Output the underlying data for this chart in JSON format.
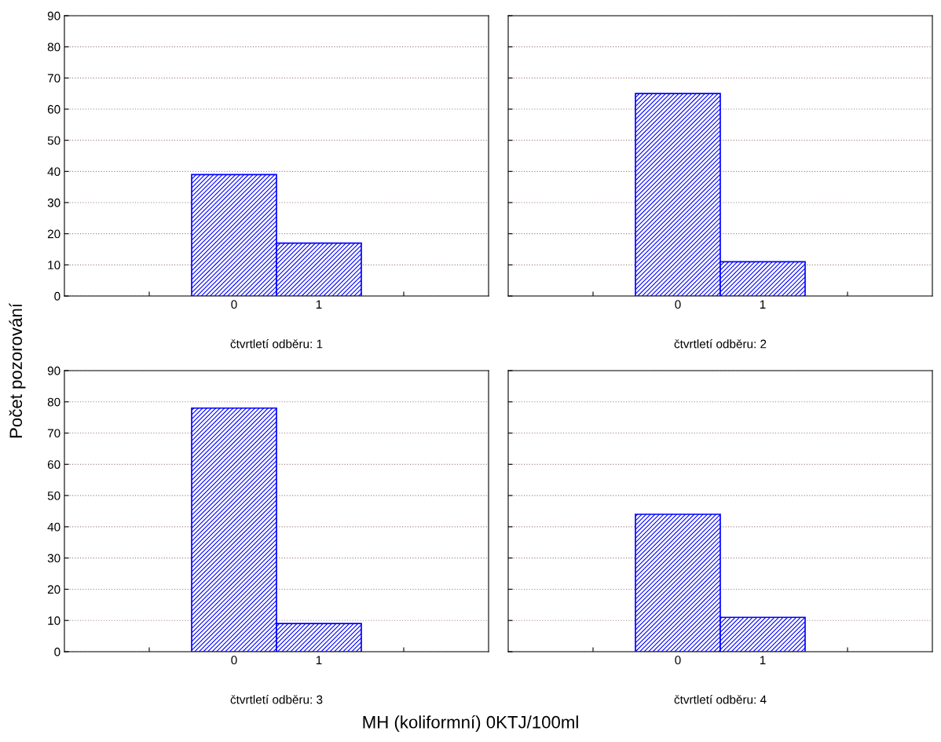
{
  "chart_data": [
    {
      "type": "bar",
      "xlabel": "čtvrtletí odběru: 1",
      "ylabel": "Počet pozorování",
      "categories": [
        null,
        "0",
        "1",
        null
      ],
      "values": [
        null,
        39,
        17,
        null
      ],
      "color": "#0000ff",
      "ylim": [
        0,
        90
      ],
      "yticks": [
        0,
        10,
        20,
        30,
        40,
        50,
        60,
        70,
        80,
        90
      ],
      "grid": "y"
    },
    {
      "type": "bar",
      "xlabel": "čtvrtletí odběru: 2",
      "categories": [
        null,
        "0",
        "1",
        null
      ],
      "values": [
        null,
        65,
        11,
        null
      ],
      "color": "#0000ff",
      "ylim": [
        0,
        90
      ],
      "yticks": [
        0,
        10,
        20,
        30,
        40,
        50,
        60,
        70,
        80,
        90
      ],
      "grid": "y",
      "tick_labels": "x"
    },
    {
      "type": "bar",
      "xlabel": "čtvrtletí odběru: 3",
      "categories": [
        null,
        "0",
        "1",
        null
      ],
      "values": [
        null,
        78,
        9,
        null
      ],
      "color": "#0000ff",
      "ylim": [
        0,
        90
      ],
      "yticks": [
        0,
        10,
        20,
        30,
        40,
        50,
        60,
        70,
        80,
        90
      ],
      "grid": "y",
      "annotations": [
        "MH (koliformní) 0KTJ/100ml"
      ]
    },
    {
      "type": "bar",
      "xlabel": "čtvrtletí odběru: 4",
      "categories": [
        null,
        "0",
        "1",
        null
      ],
      "values": [
        null,
        44,
        11,
        null
      ],
      "color": "#0000ff",
      "ylim": [
        0,
        90
      ],
      "yticks": [
        0,
        10,
        20,
        30,
        40,
        50,
        60,
        70,
        80,
        90
      ],
      "grid": "y",
      "tick_labels": "x"
    }
  ]
}
